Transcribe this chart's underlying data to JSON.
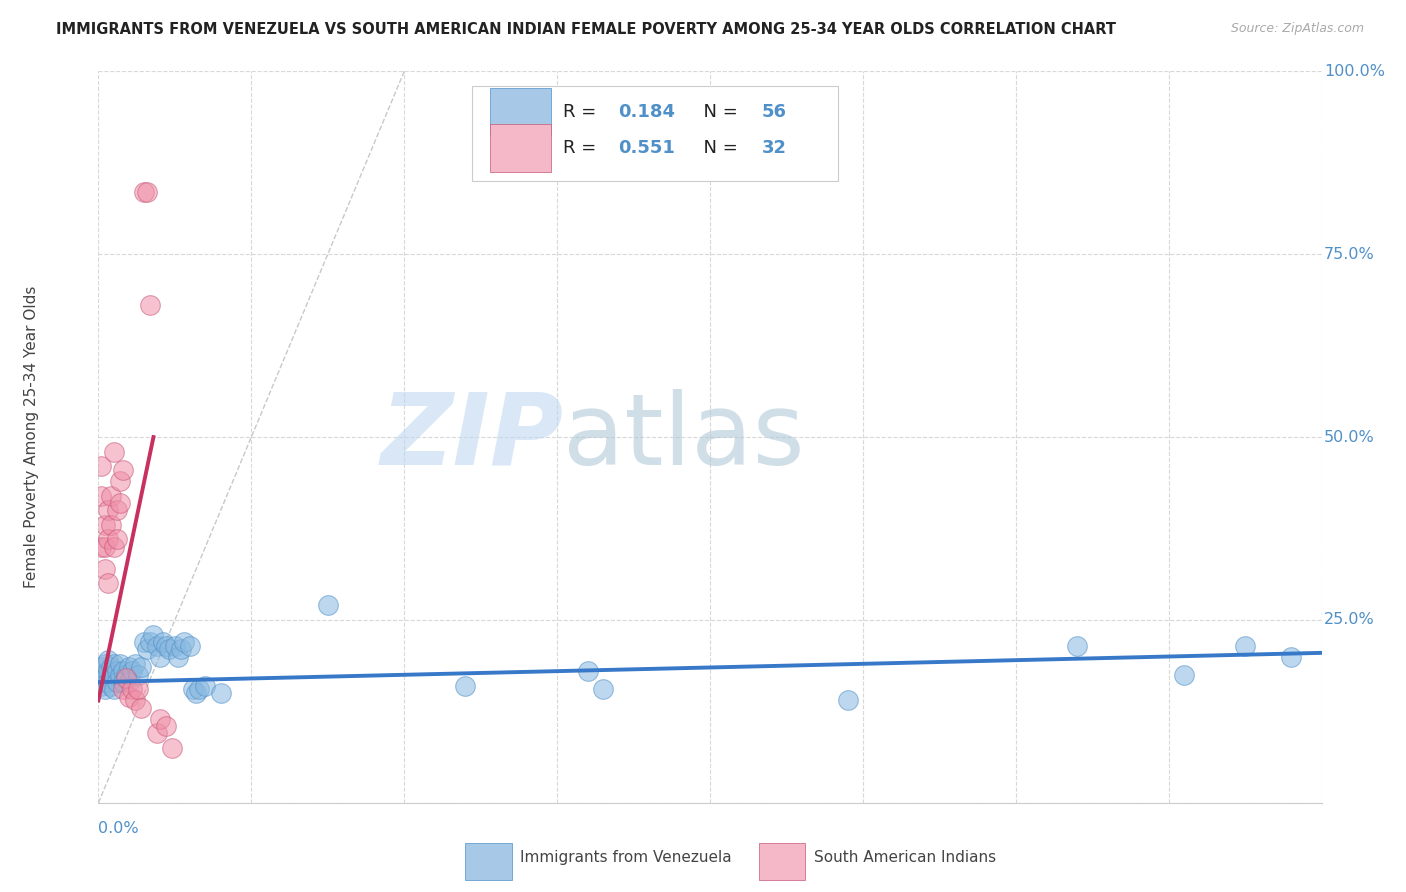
{
  "title": "IMMIGRANTS FROM VENEZUELA VS SOUTH AMERICAN INDIAN FEMALE POVERTY AMONG 25-34 YEAR OLDS CORRELATION CHART",
  "source": "Source: ZipAtlas.com",
  "ylabel": "Female Poverty Among 25-34 Year Olds",
  "xlim": [
    0.0,
    0.4
  ],
  "ylim": [
    0.0,
    1.0
  ],
  "watermark_zip": "ZIP",
  "watermark_atlas": "atlas",
  "legend_blue_color": "#a8c8e8",
  "legend_pink_color": "#f4b8c8",
  "blue_scatter_color": "#88b8e0",
  "blue_scatter_edge": "#5090c8",
  "pink_scatter_color": "#f090a8",
  "pink_scatter_edge": "#c85878",
  "blue_line_color": "#3878c8",
  "pink_line_color": "#c83060",
  "diag_line_color": "#c8c8c8",
  "grid_color": "#d8d8d8",
  "bg_color": "#ffffff",
  "title_color": "#222222",
  "source_color": "#aaaaaa",
  "axis_num_color": "#5090c8",
  "ylabel_color": "#444444",
  "legend_text_color": "#222222",
  "blue_scatter": [
    [
      0.001,
      0.175
    ],
    [
      0.001,
      0.16
    ],
    [
      0.001,
      0.185
    ],
    [
      0.002,
      0.17
    ],
    [
      0.002,
      0.19
    ],
    [
      0.002,
      0.155
    ],
    [
      0.003,
      0.18
    ],
    [
      0.003,
      0.165
    ],
    [
      0.003,
      0.195
    ],
    [
      0.004,
      0.17
    ],
    [
      0.004,
      0.185
    ],
    [
      0.004,
      0.16
    ],
    [
      0.005,
      0.175
    ],
    [
      0.005,
      0.19
    ],
    [
      0.005,
      0.155
    ],
    [
      0.006,
      0.18
    ],
    [
      0.006,
      0.165
    ],
    [
      0.007,
      0.175
    ],
    [
      0.007,
      0.19
    ],
    [
      0.008,
      0.18
    ],
    [
      0.008,
      0.165
    ],
    [
      0.009,
      0.175
    ],
    [
      0.01,
      0.185
    ],
    [
      0.01,
      0.165
    ],
    [
      0.011,
      0.18
    ],
    [
      0.012,
      0.19
    ],
    [
      0.013,
      0.175
    ],
    [
      0.014,
      0.185
    ],
    [
      0.015,
      0.22
    ],
    [
      0.016,
      0.21
    ],
    [
      0.017,
      0.22
    ],
    [
      0.018,
      0.23
    ],
    [
      0.019,
      0.215
    ],
    [
      0.02,
      0.2
    ],
    [
      0.021,
      0.22
    ],
    [
      0.022,
      0.215
    ],
    [
      0.023,
      0.21
    ],
    [
      0.025,
      0.215
    ],
    [
      0.026,
      0.2
    ],
    [
      0.027,
      0.21
    ],
    [
      0.028,
      0.22
    ],
    [
      0.03,
      0.215
    ],
    [
      0.031,
      0.155
    ],
    [
      0.032,
      0.15
    ],
    [
      0.033,
      0.155
    ],
    [
      0.035,
      0.16
    ],
    [
      0.04,
      0.15
    ],
    [
      0.075,
      0.27
    ],
    [
      0.12,
      0.16
    ],
    [
      0.16,
      0.18
    ],
    [
      0.165,
      0.155
    ],
    [
      0.245,
      0.14
    ],
    [
      0.32,
      0.215
    ],
    [
      0.355,
      0.175
    ],
    [
      0.375,
      0.215
    ],
    [
      0.39,
      0.2
    ]
  ],
  "pink_scatter": [
    [
      0.001,
      0.46
    ],
    [
      0.001,
      0.42
    ],
    [
      0.001,
      0.35
    ],
    [
      0.002,
      0.38
    ],
    [
      0.002,
      0.35
    ],
    [
      0.002,
      0.32
    ],
    [
      0.003,
      0.4
    ],
    [
      0.003,
      0.36
    ],
    [
      0.003,
      0.3
    ],
    [
      0.004,
      0.42
    ],
    [
      0.004,
      0.38
    ],
    [
      0.005,
      0.35
    ],
    [
      0.005,
      0.48
    ],
    [
      0.006,
      0.4
    ],
    [
      0.006,
      0.36
    ],
    [
      0.007,
      0.44
    ],
    [
      0.007,
      0.41
    ],
    [
      0.008,
      0.455
    ],
    [
      0.008,
      0.155
    ],
    [
      0.009,
      0.17
    ],
    [
      0.01,
      0.145
    ],
    [
      0.011,
      0.155
    ],
    [
      0.012,
      0.14
    ],
    [
      0.013,
      0.155
    ],
    [
      0.014,
      0.13
    ],
    [
      0.015,
      0.835
    ],
    [
      0.016,
      0.835
    ],
    [
      0.017,
      0.68
    ],
    [
      0.019,
      0.095
    ],
    [
      0.02,
      0.115
    ],
    [
      0.022,
      0.105
    ],
    [
      0.024,
      0.075
    ]
  ],
  "blue_trend": [
    0.0,
    0.165,
    0.4,
    0.205
  ],
  "pink_trend": [
    0.0,
    0.14,
    0.018,
    0.5
  ],
  "diag_line": [
    0.0,
    0.0,
    0.1,
    1.0
  ],
  "yticks": [
    0.0,
    0.25,
    0.5,
    0.75,
    1.0
  ],
  "ytick_labels": [
    "",
    "25.0%",
    "50.0%",
    "75.0%",
    "100.0%"
  ],
  "xtick_count": 9
}
